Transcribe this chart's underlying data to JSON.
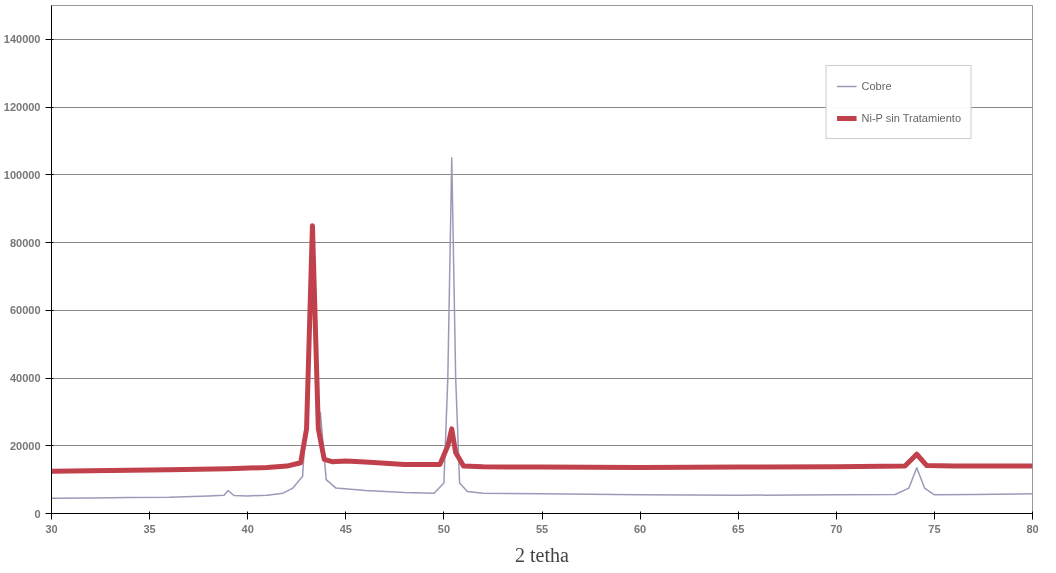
{
  "chart_data": {
    "type": "line",
    "xlabel": "2 tetha",
    "xlim": [
      30,
      80
    ],
    "xticks": [
      30,
      35,
      40,
      45,
      50,
      55,
      60,
      65,
      70,
      75,
      80
    ],
    "ylim": [
      0,
      150000
    ],
    "yticks": [
      0,
      20000,
      40000,
      60000,
      80000,
      100000,
      120000,
      140000
    ],
    "grid": "y",
    "legend": "top right",
    "marker": "none",
    "line_style": "solid",
    "series": [
      {
        "name": "Cobre",
        "color": "#9a9ab8",
        "x": [
          30,
          32,
          34,
          36,
          38,
          38.8,
          39,
          39.3,
          40,
          41,
          41.8,
          42.3,
          42.8,
          43.1,
          43.3,
          43.5,
          43.7,
          44,
          44.5,
          46,
          48,
          49.5,
          50,
          50.2,
          50.4,
          50.6,
          50.8,
          51.2,
          52,
          55,
          60,
          65,
          70,
          73,
          73.7,
          74.1,
          74.5,
          75,
          77,
          80
        ],
        "values": [
          4500,
          4600,
          4700,
          4800,
          5200,
          5400,
          6800,
          5300,
          5200,
          5400,
          6000,
          7500,
          11000,
          40000,
          null,
          null,
          30000,
          10000,
          7500,
          6800,
          6200,
          6000,
          9000,
          40000,
          105000,
          40000,
          9000,
          6500,
          6000,
          5800,
          5500,
          5400,
          5500,
          5600,
          7500,
          13500,
          7500,
          5500,
          5600,
          5800
        ]
      },
      {
        "name": "Ni-P sin Tratamiento",
        "color": "#c0404c",
        "x": [
          30,
          33,
          36,
          39,
          41,
          42,
          42.7,
          43.0,
          43.3,
          43.6,
          43.9,
          44.3,
          45,
          46,
          48,
          49.8,
          50.2,
          50.4,
          50.6,
          51,
          52,
          55,
          60,
          65,
          70,
          73.5,
          74.1,
          74.6,
          76,
          80
        ],
        "values": [
          12500,
          12700,
          12900,
          13200,
          13600,
          14000,
          15000,
          25000,
          85000,
          25000,
          16000,
          15300,
          15500,
          15200,
          14500,
          14500,
          20000,
          25000,
          18000,
          14000,
          13800,
          13700,
          13600,
          13700,
          13800,
          14000,
          17500,
          14200,
          14000,
          14000
        ]
      }
    ]
  }
}
